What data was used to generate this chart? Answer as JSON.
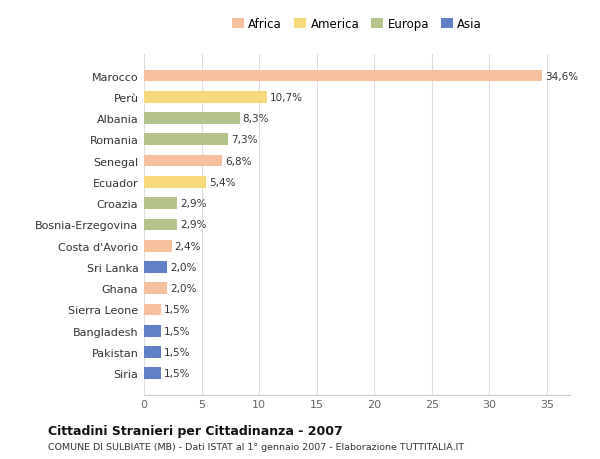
{
  "categories": [
    "Marocco",
    "Perù",
    "Albania",
    "Romania",
    "Senegal",
    "Ecuador",
    "Croazia",
    "Bosnia-Erzegovina",
    "Costa d'Avorio",
    "Sri Lanka",
    "Ghana",
    "Sierra Leone",
    "Bangladesh",
    "Pakistan",
    "Siria"
  ],
  "values": [
    34.6,
    10.7,
    8.3,
    7.3,
    6.8,
    5.4,
    2.9,
    2.9,
    2.4,
    2.0,
    2.0,
    1.5,
    1.5,
    1.5,
    1.5
  ],
  "labels": [
    "34,6%",
    "10,7%",
    "8,3%",
    "7,3%",
    "6,8%",
    "5,4%",
    "2,9%",
    "2,9%",
    "2,4%",
    "2,0%",
    "2,0%",
    "1,5%",
    "1,5%",
    "1,5%",
    "1,5%"
  ],
  "colors": [
    "#f5c09a",
    "#f5d97a",
    "#b5c48a",
    "#b5c48a",
    "#f5c09a",
    "#f5d97a",
    "#b5c48a",
    "#b5c48a",
    "#f5c09a",
    "#6080c8",
    "#f5c09a",
    "#f5c09a",
    "#6080c8",
    "#6080c8",
    "#6080c8"
  ],
  "legend_labels": [
    "Africa",
    "America",
    "Europa",
    "Asia"
  ],
  "legend_colors": [
    "#f5c09a",
    "#f5d97a",
    "#b5c48a",
    "#6080c8"
  ],
  "title": "Cittadini Stranieri per Cittadinanza - 2007",
  "subtitle": "COMUNE DI SULBIATE (MB) - Dati ISTAT al 1° gennaio 2007 - Elaborazione TUTTITALIA.IT",
  "xlim": [
    0,
    37
  ],
  "xticks": [
    0,
    5,
    10,
    15,
    20,
    25,
    30,
    35
  ],
  "background_color": "#ffffff",
  "bar_background": "#ffffff",
  "grid_color": "#dddddd"
}
